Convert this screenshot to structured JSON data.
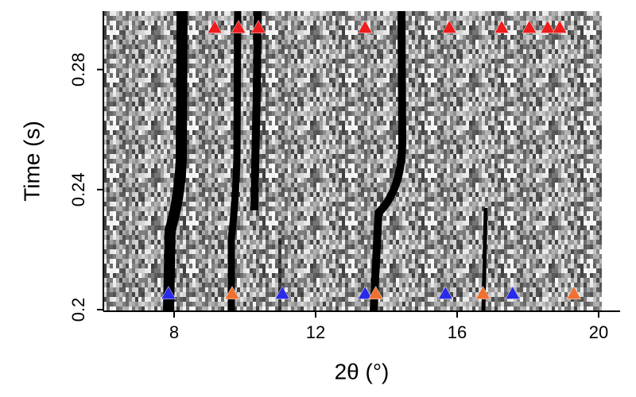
{
  "chart_data": {
    "type": "scatter",
    "xlabel": "2θ (°)",
    "ylabel": "Time (s)",
    "xlim": [
      6,
      20.5
    ],
    "ylim": [
      0.2,
      0.3
    ],
    "xticks": [
      8,
      12,
      16,
      20
    ],
    "yticks": [
      0.2,
      0.24,
      0.28
    ],
    "marker": "triangle",
    "series": [
      {
        "color": "#ee1c1c",
        "x": [
          9.15,
          9.82,
          10.38,
          13.4,
          15.78,
          17.26,
          18.04,
          18.56,
          18.9
        ],
        "y": [
          0.294,
          0.294,
          0.294,
          0.294,
          0.294,
          0.294,
          0.294,
          0.294,
          0.294
        ]
      },
      {
        "color": "#2a2ae8",
        "x": [
          7.84,
          11.06,
          13.4,
          15.67,
          17.57
        ],
        "y": [
          0.2054,
          0.2054,
          0.2054,
          0.2054,
          0.2054
        ]
      },
      {
        "color": "#f07030",
        "x": [
          9.64,
          13.7,
          16.73,
          19.3
        ],
        "y": [
          0.2054,
          0.2054,
          0.2054,
          0.2054
        ]
      }
    ]
  }
}
